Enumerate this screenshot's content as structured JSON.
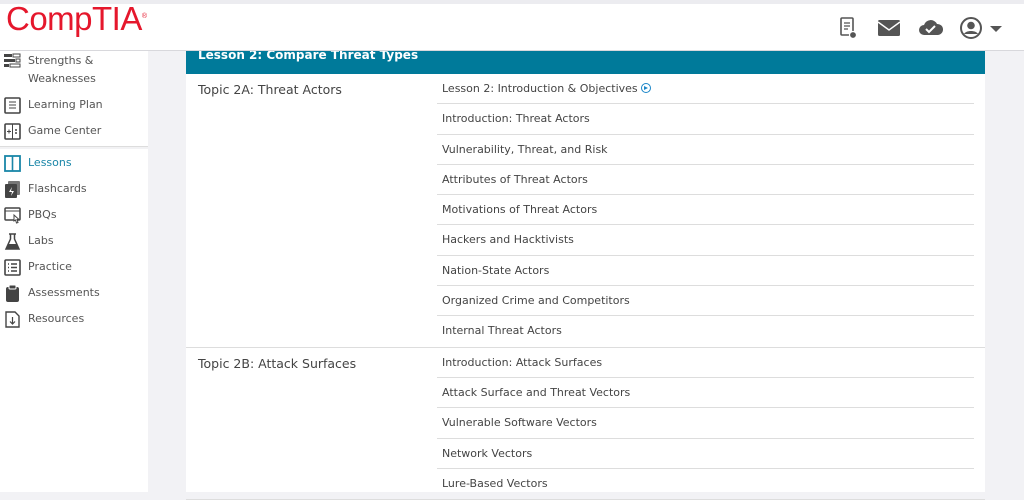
{
  "brand": {
    "logo": "CompTIA",
    "accent": "#007a9a",
    "logo_color": "#e5172c"
  },
  "header": {
    "icons": [
      "notes-icon",
      "mail-icon",
      "cloud-check-icon",
      "user-avatar-icon",
      "caret-down-icon"
    ]
  },
  "sidebar": {
    "items": [
      {
        "label": "Strengths & Weaknesses",
        "icon": "strengths-icon"
      },
      {
        "label": "Learning Plan",
        "icon": "learning-plan-icon"
      },
      {
        "label": "Game Center",
        "icon": "game-center-icon"
      },
      {
        "label": "Lessons",
        "icon": "lessons-icon",
        "active": true
      },
      {
        "label": "Flashcards",
        "icon": "flashcards-icon"
      },
      {
        "label": "PBQs",
        "icon": "pbq-icon"
      },
      {
        "label": "Labs",
        "icon": "flask-icon"
      },
      {
        "label": "Practice",
        "icon": "practice-icon"
      },
      {
        "label": "Assessments",
        "icon": "clipboard-icon"
      },
      {
        "label": "Resources",
        "icon": "download-file-icon"
      }
    ]
  },
  "lesson": {
    "title": "Lesson 2: Compare Threat Types",
    "topics": [
      {
        "title": "Topic 2A: Threat Actors",
        "items": [
          "Lesson 2: Introduction & Objectives",
          "Introduction: Threat Actors",
          "Vulnerability, Threat, and Risk",
          "Attributes of Threat Actors",
          "Motivations of Threat Actors",
          "Hackers and Hacktivists",
          "Nation-State Actors",
          "Organized Crime and Competitors",
          "Internal Threat Actors"
        ]
      },
      {
        "title": "Topic 2B: Attack Surfaces",
        "items": [
          "Introduction: Attack Surfaces",
          "Attack Surface and Threat Vectors",
          "Vulnerable Software Vectors",
          "Network Vectors",
          "Lure-Based Vectors"
        ]
      }
    ]
  }
}
